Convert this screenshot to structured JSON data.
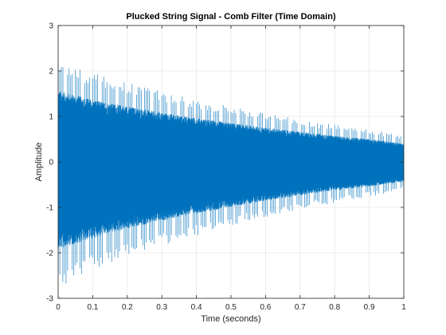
{
  "chart_data": {
    "type": "line",
    "title": "Plucked String Signal - Comb Filter (Time Domain)",
    "xlabel": "Time (seconds)",
    "ylabel": "Amplitude",
    "xlim": [
      0,
      1
    ],
    "ylim": [
      -3,
      3
    ],
    "xticks": [
      0,
      0.1,
      0.2,
      0.3,
      0.4,
      0.5,
      0.6,
      0.7,
      0.8,
      0.9,
      1
    ],
    "xtick_labels": [
      "0",
      "0.1",
      "0.2",
      "0.3",
      "0.4",
      "0.5",
      "0.6",
      "0.7",
      "0.8",
      "0.9",
      "1"
    ],
    "yticks": [
      -3,
      -2,
      -1,
      0,
      1,
      2,
      3
    ],
    "ytick_labels": [
      "-3",
      "-2",
      "-1",
      "0",
      "1",
      "2",
      "3"
    ],
    "grid": true,
    "series": [
      {
        "color": "#0072BD",
        "signal": "decaying oscillation",
        "x": [
          0,
          0.1,
          0.2,
          0.3,
          0.4,
          0.5,
          0.6,
          0.7,
          0.8,
          0.9,
          1.0
        ],
        "envelope_upper": [
          2.25,
          1.95,
          1.75,
          1.55,
          1.38,
          1.22,
          1.08,
          0.95,
          0.82,
          0.72,
          0.58
        ],
        "envelope_lower": [
          -2.75,
          -2.4,
          -2.1,
          -1.85,
          -1.62,
          -1.42,
          -1.22,
          -1.05,
          -0.9,
          -0.77,
          -0.62
        ]
      }
    ]
  }
}
